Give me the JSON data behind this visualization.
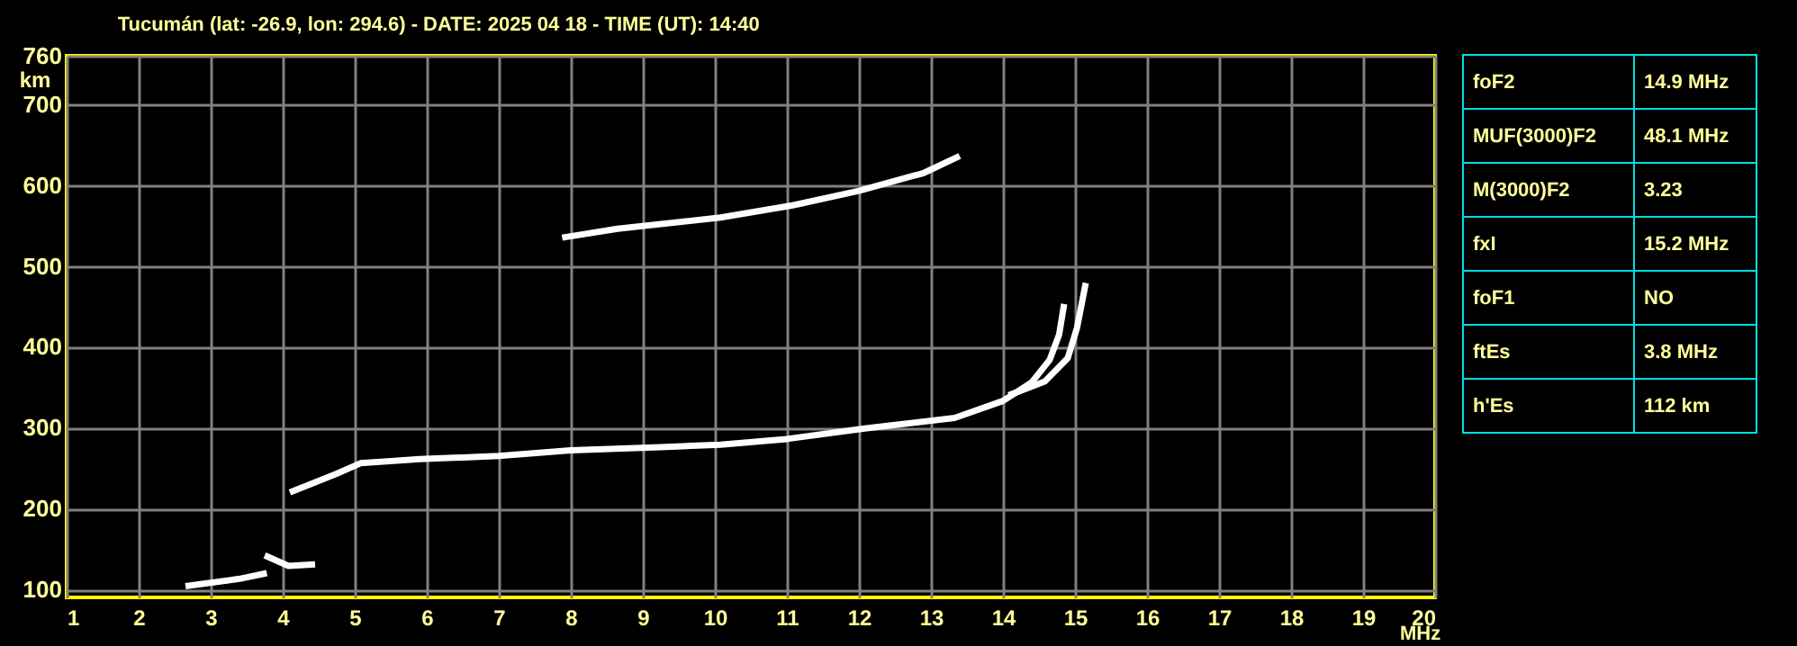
{
  "chart_data": [
    {
      "type": "line",
      "title": "Tucumán (lat: -26.9, lon: 294.6) - DATE: 2025 04 18 - TIME (UT): 14:40",
      "xlabel": "MHz",
      "ylabel": "km",
      "xlim": [
        1,
        20
      ],
      "xticks": [
        1,
        2,
        3,
        4,
        5,
        6,
        7,
        8,
        9,
        10,
        11,
        12,
        13,
        14,
        15,
        16,
        17,
        18,
        19,
        20
      ],
      "ylim": [
        90,
        760
      ],
      "yticks": [
        100,
        200,
        300,
        400,
        500,
        600,
        700,
        760
      ],
      "grid": true,
      "legend": false,
      "marker": "none",
      "line_style": "solid",
      "series": [
        {
          "color": "#ffffff",
          "x": [
            4.1,
            4.75,
            5.08,
            5.9,
            7.0,
            8.0,
            9.25,
            10.08,
            11.0,
            12.08,
            13.33,
            14.0,
            14.4,
            14.65,
            14.78,
            14.85
          ],
          "values": [
            220,
            243,
            256,
            261,
            265,
            272,
            276,
            279,
            286,
            299,
            312,
            333,
            356,
            384,
            415,
            453
          ]
        },
        {
          "color": "#ffffff",
          "x": [
            14.08,
            14.58,
            14.9,
            15.03,
            15.15
          ],
          "values": [
            340,
            357,
            386,
            424,
            479
          ]
        },
        {
          "color": "#ffffff",
          "x": [
            7.88,
            8.65,
            10.08,
            11.08,
            12.0,
            12.9,
            13.4
          ],
          "values": [
            535,
            546,
            560,
            575,
            593,
            615,
            636
          ]
        },
        {
          "color": "#ffffff",
          "x": [
            2.65,
            3.4,
            3.78
          ],
          "values": [
            104,
            113,
            120
          ]
        },
        {
          "color": "#ffffff",
          "x": [
            3.75,
            4.08,
            4.45
          ],
          "values": [
            142,
            129,
            131
          ]
        }
      ]
    },
    {
      "type": "other",
      "categories": [
        "foF2",
        "MUF(3000)F2",
        "M(3000)F2",
        "fxI",
        "foF1",
        "ftEs",
        "h'Es"
      ],
      "value_labels": [
        "14.9 MHz",
        "48.1 MHz",
        "3.23",
        "15.2 MHz",
        "NO",
        "3.8 MHz",
        "112 km"
      ]
    }
  ]
}
